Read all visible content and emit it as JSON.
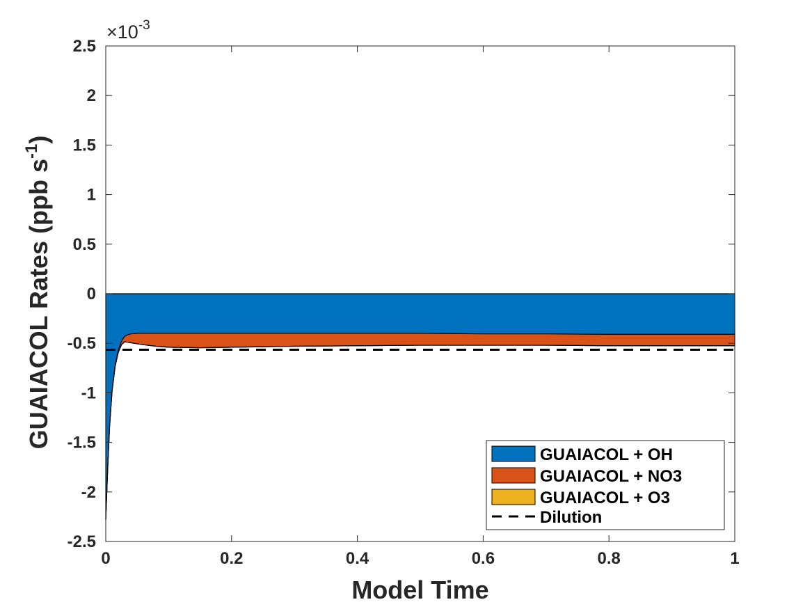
{
  "chart_data": {
    "type": "area",
    "xlabel": "Model Time",
    "ylabel_main": "GUAIACOL Rates (ppb s",
    "ylabel_sup": "-1",
    "ylabel_close": ")",
    "multiplier_sign": "×",
    "multiplier_base": "10",
    "multiplier_exp": "-3",
    "xlim": [
      0,
      1
    ],
    "ylim": [
      -2.5,
      2.5
    ],
    "y_scale_factor": 0.001,
    "x_ticks": [
      {
        "value": 0,
        "label": "0"
      },
      {
        "value": 0.2,
        "label": "0.2"
      },
      {
        "value": 0.4,
        "label": "0.4"
      },
      {
        "value": 0.6,
        "label": "0.6"
      },
      {
        "value": 0.8,
        "label": "0.8"
      },
      {
        "value": 1,
        "label": "1"
      }
    ],
    "y_ticks": [
      {
        "value": 2.5,
        "label": "2.5"
      },
      {
        "value": 2,
        "label": "2"
      },
      {
        "value": 1.5,
        "label": "1.5"
      },
      {
        "value": 1,
        "label": "1"
      },
      {
        "value": 0.5,
        "label": "0.5"
      },
      {
        "value": 0,
        "label": "0"
      },
      {
        "value": -0.5,
        "label": "-0.5"
      },
      {
        "value": -1,
        "label": "-1"
      },
      {
        "value": -1.5,
        "label": "-1.5"
      },
      {
        "value": -2,
        "label": "-2"
      },
      {
        "value": -2.5,
        "label": "-2.5"
      }
    ],
    "x": [
      0,
      0.003,
      0.006,
      0.01,
      0.015,
      0.02,
      0.025,
      0.03,
      0.035,
      0.04,
      0.05,
      0.06,
      0.08,
      0.1,
      0.15,
      0.2,
      0.3,
      0.4,
      0.5,
      0.6,
      0.7,
      0.8,
      0.9,
      1.0
    ],
    "series": [
      {
        "name": "GUAIACOL + OH",
        "color": "#0072BD",
        "values": [
          -2.28,
          -1.78,
          -1.35,
          -0.98,
          -0.72,
          -0.57,
          -0.48,
          -0.43,
          -0.415,
          -0.405,
          -0.4,
          -0.4,
          -0.4,
          -0.4,
          -0.4,
          -0.4,
          -0.4,
          -0.4,
          -0.4,
          -0.405,
          -0.405,
          -0.41,
          -0.41,
          -0.41
        ]
      },
      {
        "name": "GUAIACOL + NO3",
        "color": "#D95319",
        "values": [
          0,
          0.0,
          0.0,
          -0.005,
          -0.01,
          -0.02,
          -0.035,
          -0.055,
          -0.075,
          -0.09,
          -0.105,
          -0.115,
          -0.13,
          -0.14,
          -0.145,
          -0.14,
          -0.13,
          -0.125,
          -0.12,
          -0.115,
          -0.115,
          -0.115,
          -0.115,
          -0.115
        ]
      },
      {
        "name": "GUAIACOL + O3",
        "color": "#EDB120",
        "values": [
          0,
          0,
          0,
          0,
          0,
          0,
          0,
          0,
          0,
          0,
          0,
          0,
          0,
          0,
          0,
          0,
          0,
          0,
          0,
          0,
          0,
          0,
          0,
          0
        ]
      }
    ],
    "dilution": {
      "name": "Dilution",
      "value": -0.565,
      "color": "#000000"
    },
    "legend_position": "bottom-right",
    "grid": false
  }
}
